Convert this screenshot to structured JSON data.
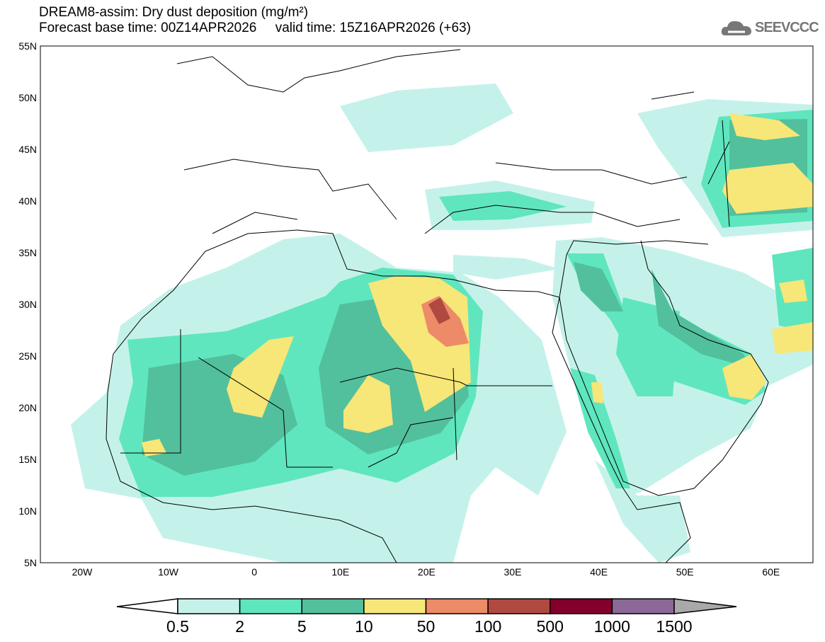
{
  "title": {
    "line1": "DREAM8-assim: Dry dust deposition (mg/m²)",
    "line2": "Forecast base time: 00Z14APR2026     valid time: 15Z16APR2026 (+63)"
  },
  "logo": {
    "text": "SEEVCCC",
    "icon": "cloud-icon"
  },
  "map": {
    "lat_labels": [
      "55N",
      "50N",
      "45N",
      "40N",
      "35N",
      "30N",
      "25N",
      "20N",
      "15N",
      "10N",
      "5N"
    ],
    "lon_labels": [
      "20W",
      "10W",
      "0",
      "10E",
      "20E",
      "30E",
      "40E",
      "50E",
      "60E"
    ]
  },
  "colorbar": {
    "labels": [
      "0.5",
      "2",
      "5",
      "10",
      "50",
      "100",
      "500",
      "1000",
      "1500"
    ],
    "colors": [
      "#c4f2ea",
      "#5fe6be",
      "#52c09c",
      "#f7e678",
      "#ed8a68",
      "#b04a40",
      "#83002a",
      "#8c6898",
      "#a9a9a9"
    ],
    "under_color": "#ffffff"
  }
}
